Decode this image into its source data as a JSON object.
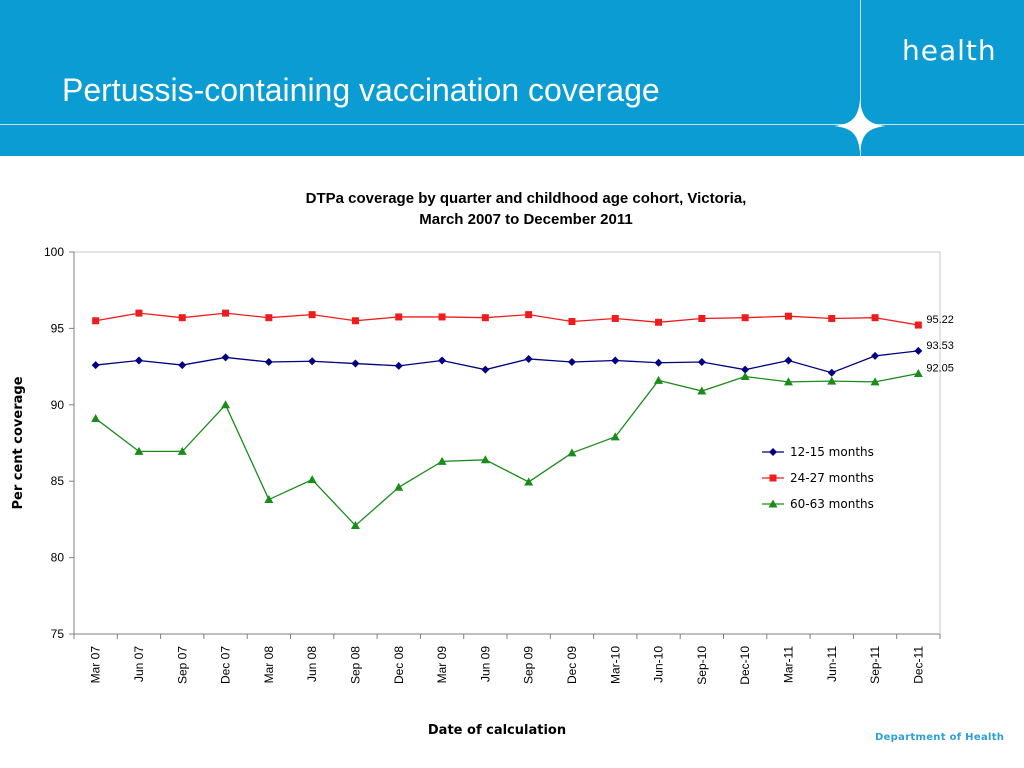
{
  "header": {
    "title": "Pertussis-containing vaccination coverage",
    "brand": "health"
  },
  "footer": {
    "department": "Department of Health"
  },
  "colors": {
    "banner": "#0a9cd3",
    "series_12_15": "#000080",
    "series_24_27": "#ee1c1c",
    "series_60_63": "#1a8c1a"
  },
  "chart_data": {
    "type": "line",
    "title_line1": "DTPa coverage by quarter and childhood age cohort, Victoria,",
    "title_line2": "March 2007 to December 2011",
    "xlabel": "Date of calculation",
    "ylabel": "Per cent coverage",
    "ylim": [
      75,
      100
    ],
    "yticks": [
      75,
      80,
      85,
      90,
      95,
      100
    ],
    "grid": false,
    "legend_position": "right",
    "categories": [
      "Mar 07",
      "Jun 07",
      "Sep 07",
      "Dec 07",
      "Mar 08",
      "Jun 08",
      "Sep 08",
      "Dec 08",
      "Mar 09",
      "Jun 09",
      "Sep 09",
      "Dec 09",
      "Mar-10",
      "Jun-10",
      "Sep-10",
      "Dec-10",
      "Mar-11",
      "Jun-11",
      "Sep-11",
      "Dec-11"
    ],
    "series": [
      {
        "name": "12-15 months",
        "marker": "diamond",
        "color": "#000080",
        "end_label": "93.53",
        "values": [
          92.6,
          92.9,
          92.6,
          93.1,
          92.8,
          92.85,
          92.7,
          92.55,
          92.9,
          92.3,
          93.0,
          92.8,
          92.9,
          92.75,
          92.8,
          92.3,
          92.9,
          92.1,
          93.2,
          93.53
        ]
      },
      {
        "name": "24-27 months",
        "marker": "square",
        "color": "#ee1c1c",
        "end_label": "95.22",
        "values": [
          95.5,
          96.0,
          95.7,
          96.0,
          95.7,
          95.9,
          95.5,
          95.75,
          95.75,
          95.7,
          95.9,
          95.45,
          95.65,
          95.4,
          95.65,
          95.7,
          95.8,
          95.65,
          95.7,
          95.22
        ]
      },
      {
        "name": "60-63 months",
        "marker": "triangle",
        "color": "#1a8c1a",
        "end_label": "92.05",
        "values": [
          89.1,
          86.95,
          86.95,
          90.0,
          83.8,
          85.1,
          82.1,
          84.6,
          86.3,
          86.4,
          84.95,
          86.85,
          87.9,
          91.6,
          90.9,
          91.85,
          91.5,
          91.55,
          91.5,
          92.05
        ]
      }
    ]
  }
}
